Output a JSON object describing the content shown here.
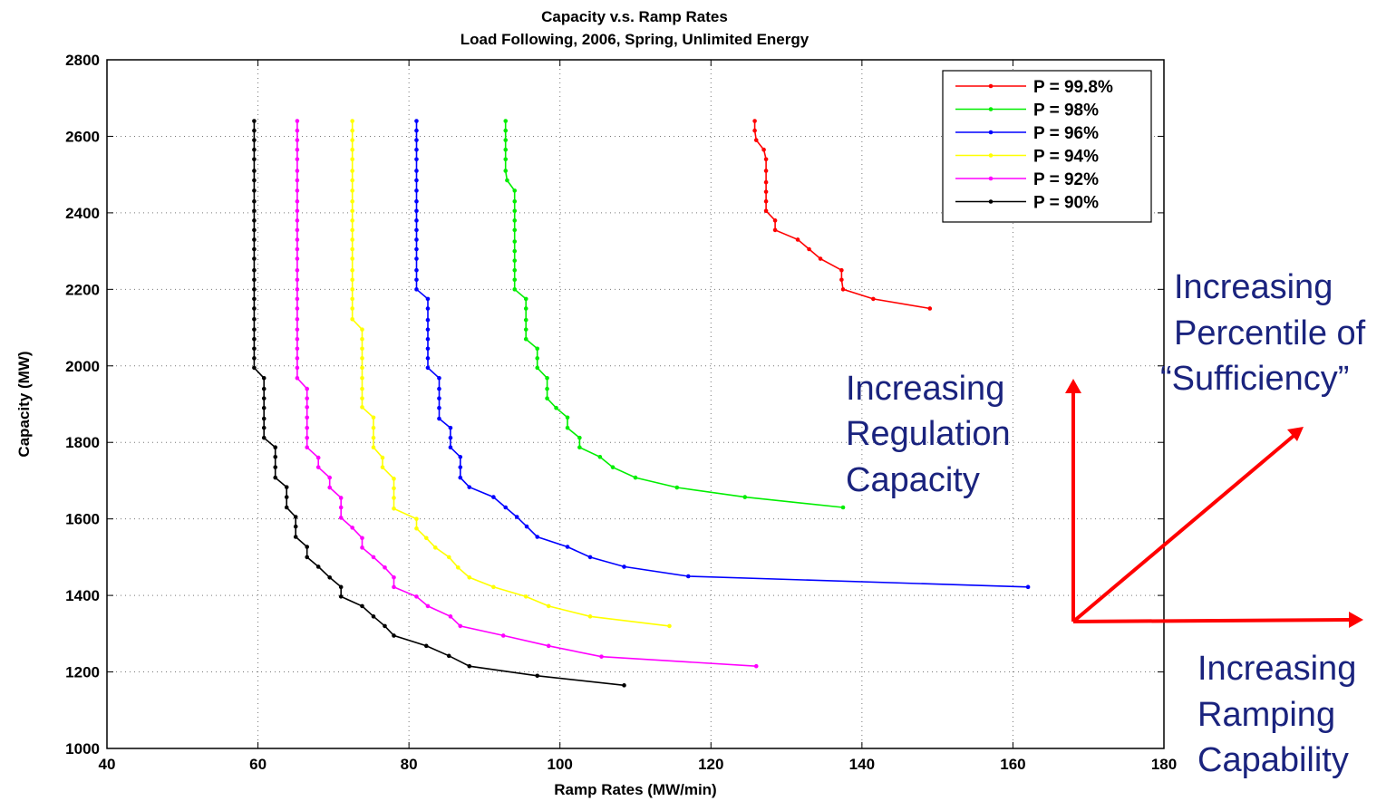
{
  "chart_data": {
    "type": "line",
    "title": "Capacity v.s. Ramp Rates",
    "subtitle": "Load Following, 2006, Spring, Unlimited Energy",
    "xlabel": "Ramp Rates (MW/min)",
    "ylabel": "Capacity (MW)",
    "xlim": [
      40,
      180
    ],
    "ylim": [
      1000,
      2800
    ],
    "xticks": [
      "40",
      "60",
      "80",
      "100",
      "120",
      "140",
      "160",
      "180"
    ],
    "yticks": [
      "1000",
      "1200",
      "1400",
      "1600",
      "1800",
      "2000",
      "2200",
      "2400",
      "2600",
      "2800"
    ],
    "grid": true,
    "legend_position": "top-right",
    "series": [
      {
        "name": "P = 99.8%",
        "color": "#ff0000",
        "points": [
          [
            149.0,
            2150
          ],
          [
            141.5,
            2175
          ],
          [
            137.5,
            2200
          ],
          [
            137.3,
            2225
          ],
          [
            137.3,
            2250
          ],
          [
            134.5,
            2280
          ],
          [
            133.0,
            2305
          ],
          [
            131.5,
            2330
          ],
          [
            128.5,
            2355
          ],
          [
            128.5,
            2380
          ],
          [
            127.3,
            2405
          ],
          [
            127.3,
            2430
          ],
          [
            127.3,
            2455
          ],
          [
            127.3,
            2480
          ],
          [
            127.3,
            2510
          ],
          [
            127.3,
            2540
          ],
          [
            127.0,
            2565
          ],
          [
            126.0,
            2590
          ],
          [
            125.8,
            2615
          ],
          [
            125.8,
            2640
          ]
        ]
      },
      {
        "name": "P = 98%",
        "color": "#00ee00",
        "points": [
          [
            137.5,
            1630
          ],
          [
            124.5,
            1657
          ],
          [
            115.5,
            1682
          ],
          [
            110.0,
            1708
          ],
          [
            107.0,
            1735
          ],
          [
            105.3,
            1762
          ],
          [
            102.6,
            1787
          ],
          [
            102.6,
            1812
          ],
          [
            101.0,
            1838
          ],
          [
            101.0,
            1865
          ],
          [
            99.5,
            1890
          ],
          [
            98.3,
            1915
          ],
          [
            98.3,
            1940
          ],
          [
            98.3,
            1968
          ],
          [
            97.0,
            1995
          ],
          [
            97.0,
            2020
          ],
          [
            97.0,
            2045
          ],
          [
            95.5,
            2070
          ],
          [
            95.5,
            2095
          ],
          [
            95.5,
            2120
          ],
          [
            95.5,
            2150
          ],
          [
            95.5,
            2175
          ],
          [
            94.0,
            2200
          ],
          [
            94.0,
            2225
          ],
          [
            94.0,
            2250
          ],
          [
            94.0,
            2275
          ],
          [
            94.0,
            2300
          ],
          [
            94.0,
            2325
          ],
          [
            94.0,
            2355
          ],
          [
            94.0,
            2380
          ],
          [
            94.0,
            2405
          ],
          [
            94.0,
            2430
          ],
          [
            94.0,
            2458
          ],
          [
            93.0,
            2485
          ],
          [
            92.8,
            2510
          ],
          [
            92.8,
            2540
          ],
          [
            92.8,
            2565
          ],
          [
            92.8,
            2590
          ],
          [
            92.8,
            2615
          ],
          [
            92.8,
            2640
          ]
        ]
      },
      {
        "name": "P = 96%",
        "color": "#0000ff",
        "points": [
          [
            162.0,
            1422
          ],
          [
            117.0,
            1450
          ],
          [
            108.5,
            1475
          ],
          [
            104.0,
            1500
          ],
          [
            101.0,
            1527
          ],
          [
            97.0,
            1553
          ],
          [
            95.6,
            1580
          ],
          [
            94.3,
            1605
          ],
          [
            92.8,
            1630
          ],
          [
            91.2,
            1657
          ],
          [
            88.0,
            1683
          ],
          [
            86.8,
            1708
          ],
          [
            86.8,
            1735
          ],
          [
            86.8,
            1762
          ],
          [
            85.5,
            1787
          ],
          [
            85.5,
            1812
          ],
          [
            85.5,
            1838
          ],
          [
            84.0,
            1862
          ],
          [
            84.0,
            1890
          ],
          [
            84.0,
            1915
          ],
          [
            84.0,
            1940
          ],
          [
            84.0,
            1968
          ],
          [
            82.5,
            1995
          ],
          [
            82.5,
            2020
          ],
          [
            82.5,
            2045
          ],
          [
            82.5,
            2070
          ],
          [
            82.5,
            2095
          ],
          [
            82.5,
            2120
          ],
          [
            82.5,
            2150
          ],
          [
            82.5,
            2175
          ],
          [
            81.0,
            2200
          ],
          [
            81.0,
            2225
          ],
          [
            81.0,
            2250
          ],
          [
            81.0,
            2280
          ],
          [
            81.0,
            2305
          ],
          [
            81.0,
            2330
          ],
          [
            81.0,
            2355
          ],
          [
            81.0,
            2380
          ],
          [
            81.0,
            2405
          ],
          [
            81.0,
            2430
          ],
          [
            81.0,
            2458
          ],
          [
            81.0,
            2485
          ],
          [
            81.0,
            2510
          ],
          [
            81.0,
            2540
          ],
          [
            81.0,
            2565
          ],
          [
            81.0,
            2590
          ],
          [
            81.0,
            2615
          ],
          [
            81.0,
            2640
          ]
        ]
      },
      {
        "name": "P = 94%",
        "color": "#ffff00",
        "points": [
          [
            114.5,
            1320
          ],
          [
            104.0,
            1345
          ],
          [
            98.5,
            1372
          ],
          [
            95.5,
            1397
          ],
          [
            91.2,
            1422
          ],
          [
            88.0,
            1447
          ],
          [
            86.5,
            1473
          ],
          [
            85.3,
            1500
          ],
          [
            83.5,
            1525
          ],
          [
            82.3,
            1550
          ],
          [
            81.0,
            1575
          ],
          [
            81.0,
            1600
          ],
          [
            78.0,
            1627
          ],
          [
            78.0,
            1655
          ],
          [
            78.0,
            1680
          ],
          [
            78.0,
            1705
          ],
          [
            76.5,
            1735
          ],
          [
            76.5,
            1760
          ],
          [
            75.3,
            1787
          ],
          [
            75.3,
            1812
          ],
          [
            75.3,
            1838
          ],
          [
            75.3,
            1865
          ],
          [
            73.8,
            1892
          ],
          [
            73.8,
            1915
          ],
          [
            73.8,
            1940
          ],
          [
            73.8,
            1968
          ],
          [
            73.8,
            1995
          ],
          [
            73.8,
            2020
          ],
          [
            73.8,
            2045
          ],
          [
            73.8,
            2070
          ],
          [
            73.8,
            2095
          ],
          [
            72.5,
            2122
          ],
          [
            72.5,
            2150
          ],
          [
            72.5,
            2175
          ],
          [
            72.5,
            2200
          ],
          [
            72.5,
            2225
          ],
          [
            72.5,
            2250
          ],
          [
            72.5,
            2280
          ],
          [
            72.5,
            2305
          ],
          [
            72.5,
            2330
          ],
          [
            72.5,
            2355
          ],
          [
            72.5,
            2380
          ],
          [
            72.5,
            2405
          ],
          [
            72.5,
            2430
          ],
          [
            72.5,
            2458
          ],
          [
            72.5,
            2485
          ],
          [
            72.5,
            2510
          ],
          [
            72.5,
            2540
          ],
          [
            72.5,
            2565
          ],
          [
            72.5,
            2590
          ],
          [
            72.5,
            2615
          ],
          [
            72.5,
            2640
          ]
        ]
      },
      {
        "name": "P = 92%",
        "color": "#ff00ff",
        "points": [
          [
            126.0,
            1215
          ],
          [
            105.5,
            1240
          ],
          [
            98.5,
            1268
          ],
          [
            92.5,
            1295
          ],
          [
            86.8,
            1320
          ],
          [
            85.5,
            1345
          ],
          [
            82.5,
            1372
          ],
          [
            81.0,
            1397
          ],
          [
            78.0,
            1422
          ],
          [
            78.0,
            1447
          ],
          [
            76.8,
            1473
          ],
          [
            75.3,
            1500
          ],
          [
            73.8,
            1525
          ],
          [
            73.8,
            1550
          ],
          [
            72.5,
            1577
          ],
          [
            71.0,
            1603
          ],
          [
            71.0,
            1630
          ],
          [
            71.0,
            1655
          ],
          [
            69.5,
            1682
          ],
          [
            69.5,
            1708
          ],
          [
            68.0,
            1735
          ],
          [
            68.0,
            1760
          ],
          [
            66.5,
            1787
          ],
          [
            66.5,
            1812
          ],
          [
            66.5,
            1838
          ],
          [
            66.5,
            1865
          ],
          [
            66.5,
            1892
          ],
          [
            66.5,
            1915
          ],
          [
            66.5,
            1940
          ],
          [
            65.2,
            1968
          ],
          [
            65.2,
            1995
          ],
          [
            65.2,
            2020
          ],
          [
            65.2,
            2045
          ],
          [
            65.2,
            2070
          ],
          [
            65.2,
            2095
          ],
          [
            65.2,
            2122
          ],
          [
            65.2,
            2150
          ],
          [
            65.2,
            2175
          ],
          [
            65.2,
            2200
          ],
          [
            65.2,
            2225
          ],
          [
            65.2,
            2250
          ],
          [
            65.2,
            2280
          ],
          [
            65.2,
            2305
          ],
          [
            65.2,
            2330
          ],
          [
            65.2,
            2355
          ],
          [
            65.2,
            2380
          ],
          [
            65.2,
            2405
          ],
          [
            65.2,
            2430
          ],
          [
            65.2,
            2458
          ],
          [
            65.2,
            2485
          ],
          [
            65.2,
            2510
          ],
          [
            65.2,
            2540
          ],
          [
            65.2,
            2565
          ],
          [
            65.2,
            2590
          ],
          [
            65.2,
            2615
          ],
          [
            65.2,
            2640
          ]
        ]
      },
      {
        "name": "P = 90%",
        "color": "#000000",
        "points": [
          [
            108.5,
            1165
          ],
          [
            97.0,
            1190
          ],
          [
            88.0,
            1215
          ],
          [
            85.3,
            1242
          ],
          [
            82.3,
            1268
          ],
          [
            78.0,
            1295
          ],
          [
            76.8,
            1320
          ],
          [
            75.3,
            1345
          ],
          [
            73.8,
            1372
          ],
          [
            71.0,
            1397
          ],
          [
            71.0,
            1422
          ],
          [
            69.5,
            1447
          ],
          [
            68.0,
            1475
          ],
          [
            66.5,
            1500
          ],
          [
            66.5,
            1527
          ],
          [
            65.0,
            1553
          ],
          [
            65.0,
            1580
          ],
          [
            65.0,
            1605
          ],
          [
            63.8,
            1630
          ],
          [
            63.8,
            1657
          ],
          [
            63.8,
            1683
          ],
          [
            62.3,
            1708
          ],
          [
            62.3,
            1735
          ],
          [
            62.3,
            1762
          ],
          [
            62.3,
            1787
          ],
          [
            60.8,
            1812
          ],
          [
            60.8,
            1838
          ],
          [
            60.8,
            1862
          ],
          [
            60.8,
            1890
          ],
          [
            60.8,
            1915
          ],
          [
            60.8,
            1940
          ],
          [
            60.8,
            1968
          ],
          [
            59.5,
            1995
          ],
          [
            59.5,
            2020
          ],
          [
            59.5,
            2045
          ],
          [
            59.5,
            2070
          ],
          [
            59.5,
            2095
          ],
          [
            59.5,
            2122
          ],
          [
            59.5,
            2150
          ],
          [
            59.5,
            2175
          ],
          [
            59.5,
            2200
          ],
          [
            59.5,
            2225
          ],
          [
            59.5,
            2250
          ],
          [
            59.5,
            2280
          ],
          [
            59.5,
            2305
          ],
          [
            59.5,
            2330
          ],
          [
            59.5,
            2355
          ],
          [
            59.5,
            2380
          ],
          [
            59.5,
            2405
          ],
          [
            59.5,
            2430
          ],
          [
            59.5,
            2458
          ],
          [
            59.5,
            2485
          ],
          [
            59.5,
            2510
          ],
          [
            59.5,
            2540
          ],
          [
            59.5,
            2565
          ],
          [
            59.5,
            2590
          ],
          [
            59.5,
            2615
          ],
          [
            59.5,
            2640
          ]
        ]
      }
    ],
    "annotations": [
      {
        "id": "regulation",
        "lines": [
          "Increasing",
          "Regulation",
          "Capacity"
        ]
      },
      {
        "id": "percentile",
        "lines": [
          "Increasing",
          "Percentile of",
          "“Sufficiency”"
        ]
      },
      {
        "id": "ramping",
        "lines": [
          "Increasing",
          "Ramping",
          "Capability"
        ]
      }
    ],
    "arrow_color": "#ff0000",
    "annotation_color": "#1a237e"
  }
}
